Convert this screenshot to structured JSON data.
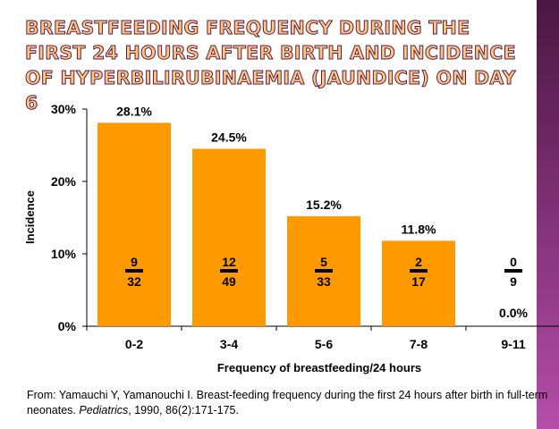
{
  "title": "BREASTFEEDING FREQUENCY DURING THE FIRST 24 HOURS AFTER BIRTH AND INCIDENCE OF HYPERBILIRUBINAEMIA (JAUNDICE) ON DAY 6",
  "citation": {
    "pre": "From: Yamauchi Y, Yamanouchi I.  Breast-feeding frequency during the first 24 hours after birth in full-term neonates. ",
    "journal": "Pediatrics",
    "post": ", 1990, 86(2):171-175."
  },
  "chart_data": {
    "type": "bar",
    "categories": [
      "0-2",
      "3-4",
      "5-6",
      "7-8",
      "9-11"
    ],
    "values": [
      28.1,
      24.5,
      15.2,
      11.8,
      0.0
    ],
    "data_labels": [
      "28.1%",
      "24.5%",
      "15.2%",
      "11.8%",
      "0.0%"
    ],
    "numerators": [
      "9",
      "12",
      "5",
      "2",
      "0"
    ],
    "denominators": [
      "32",
      "49",
      "33",
      "17",
      "9"
    ],
    "xlabel": "Frequency of breastfeeding/24 hours",
    "ylabel": "Incidence",
    "ylim": [
      0,
      30
    ],
    "yticks": [
      "0%",
      "10%",
      "20%",
      "30%"
    ],
    "bar_color": "#ff9900"
  }
}
